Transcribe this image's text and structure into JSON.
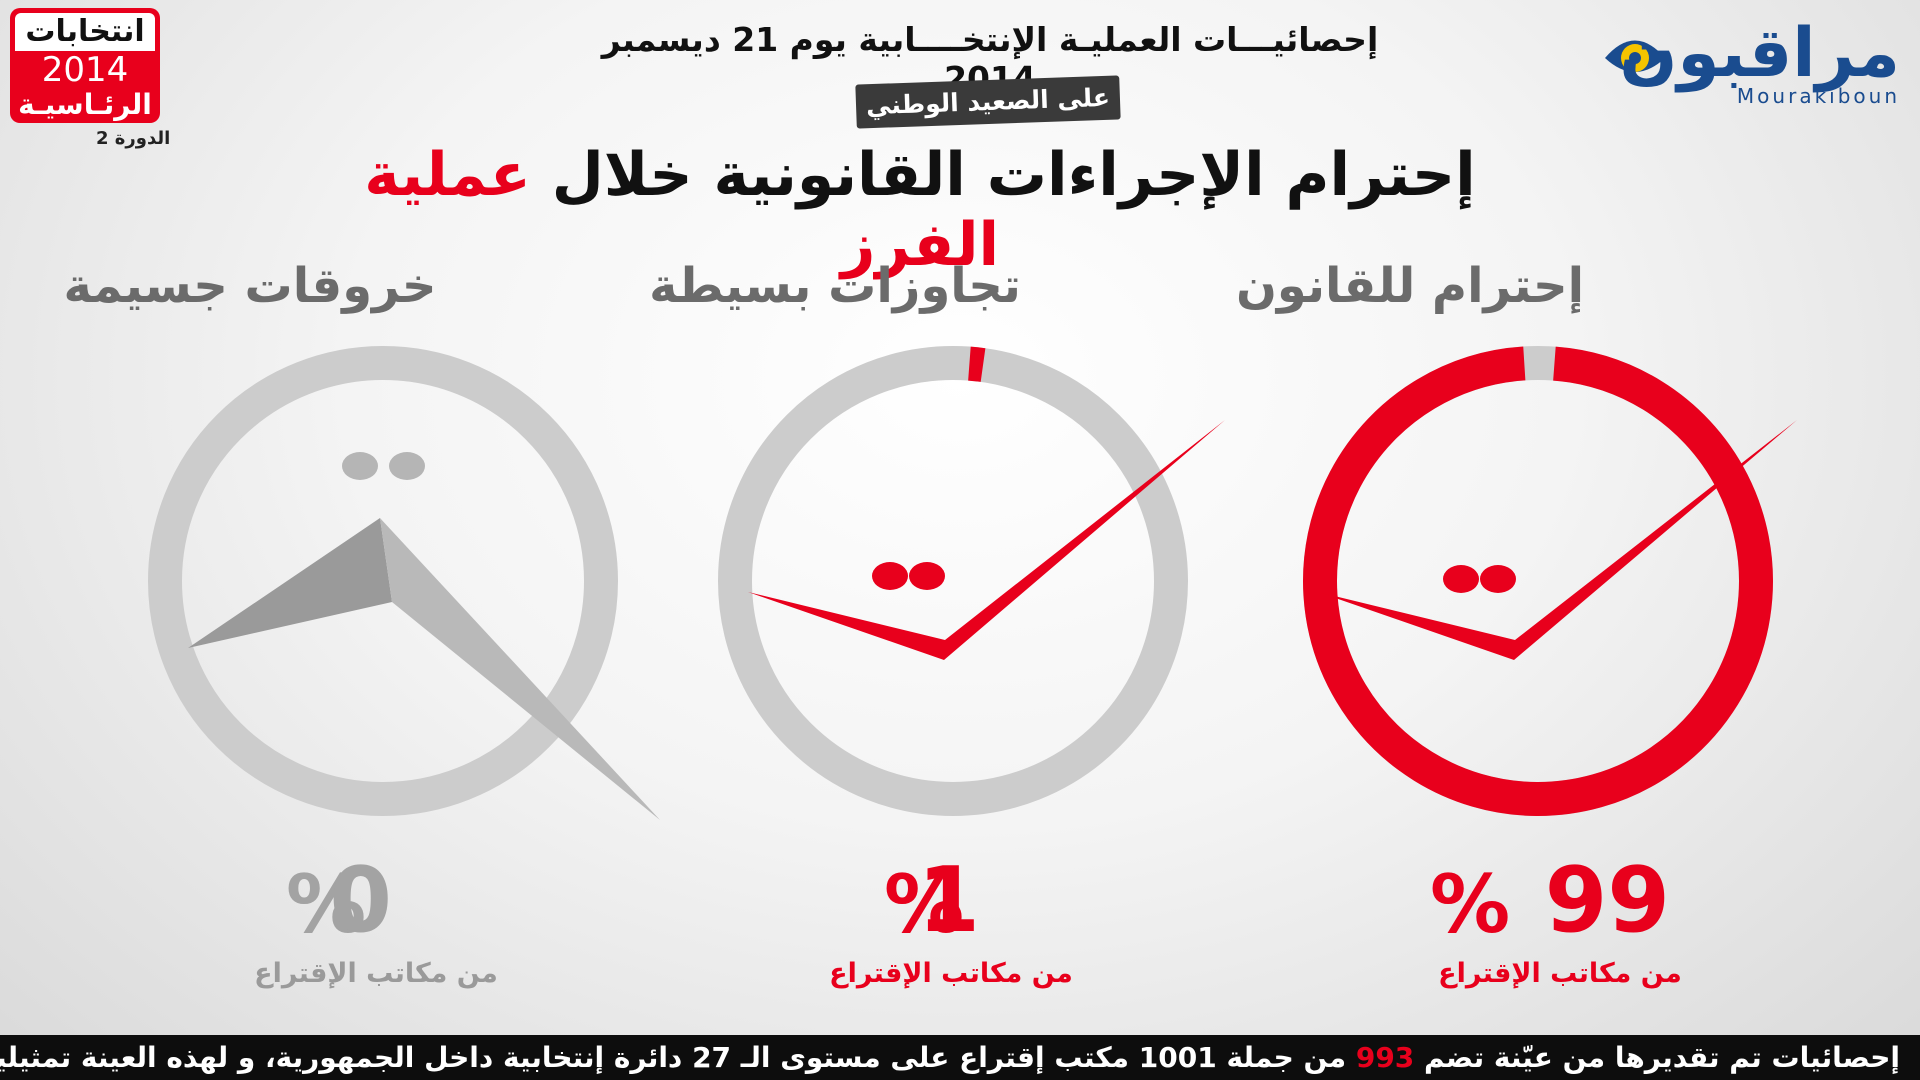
{
  "badge": {
    "line1": "انتخابات",
    "year": "2014",
    "line3": "الرئـاسيـة",
    "round": "الدورة 2"
  },
  "logo": {
    "arabic": "مراقبون",
    "latin": "Mourakiboun"
  },
  "header": {
    "stats_title": "إحصائيـــات العمليـة الإنتخــــابية يوم 21 ديسمبر 2014",
    "scope_tag": "على الصعيد الوطني",
    "main_title_part1": "إحترام الإجراءات القانونية  خلال",
    "main_title_part2": "عملية الفرز"
  },
  "chart_data": {
    "type": "donut",
    "series": [
      {
        "label": "إحترام للقانون",
        "value": 99,
        "display": "99",
        "sub": "من مكاتب الإقتراع",
        "color": "#e8001c"
      },
      {
        "label": "تجاوزات بسيطة",
        "value": 1,
        "display": "1",
        "sub": "من مكاتب الإقتراع",
        "color": "#e8001c"
      },
      {
        "label": "خروقات جسيمة",
        "value": 0,
        "display": "0",
        "sub": "من مكاتب الإقتراع",
        "color": "#9a9a9a"
      }
    ],
    "percent_sign": "%",
    "track_color": "#cccccc"
  },
  "footer": {
    "part1": "إحصائيات تم تقديرها من عيّنة تضم",
    "sample": "993",
    "part2": "من جملة 1001 مكتب إقتراع على مستوى الـ 27 دائرة إنتخابية داخل الجمهورية، و لهذه العينة تمثيلية على الصعيد الوطني"
  }
}
